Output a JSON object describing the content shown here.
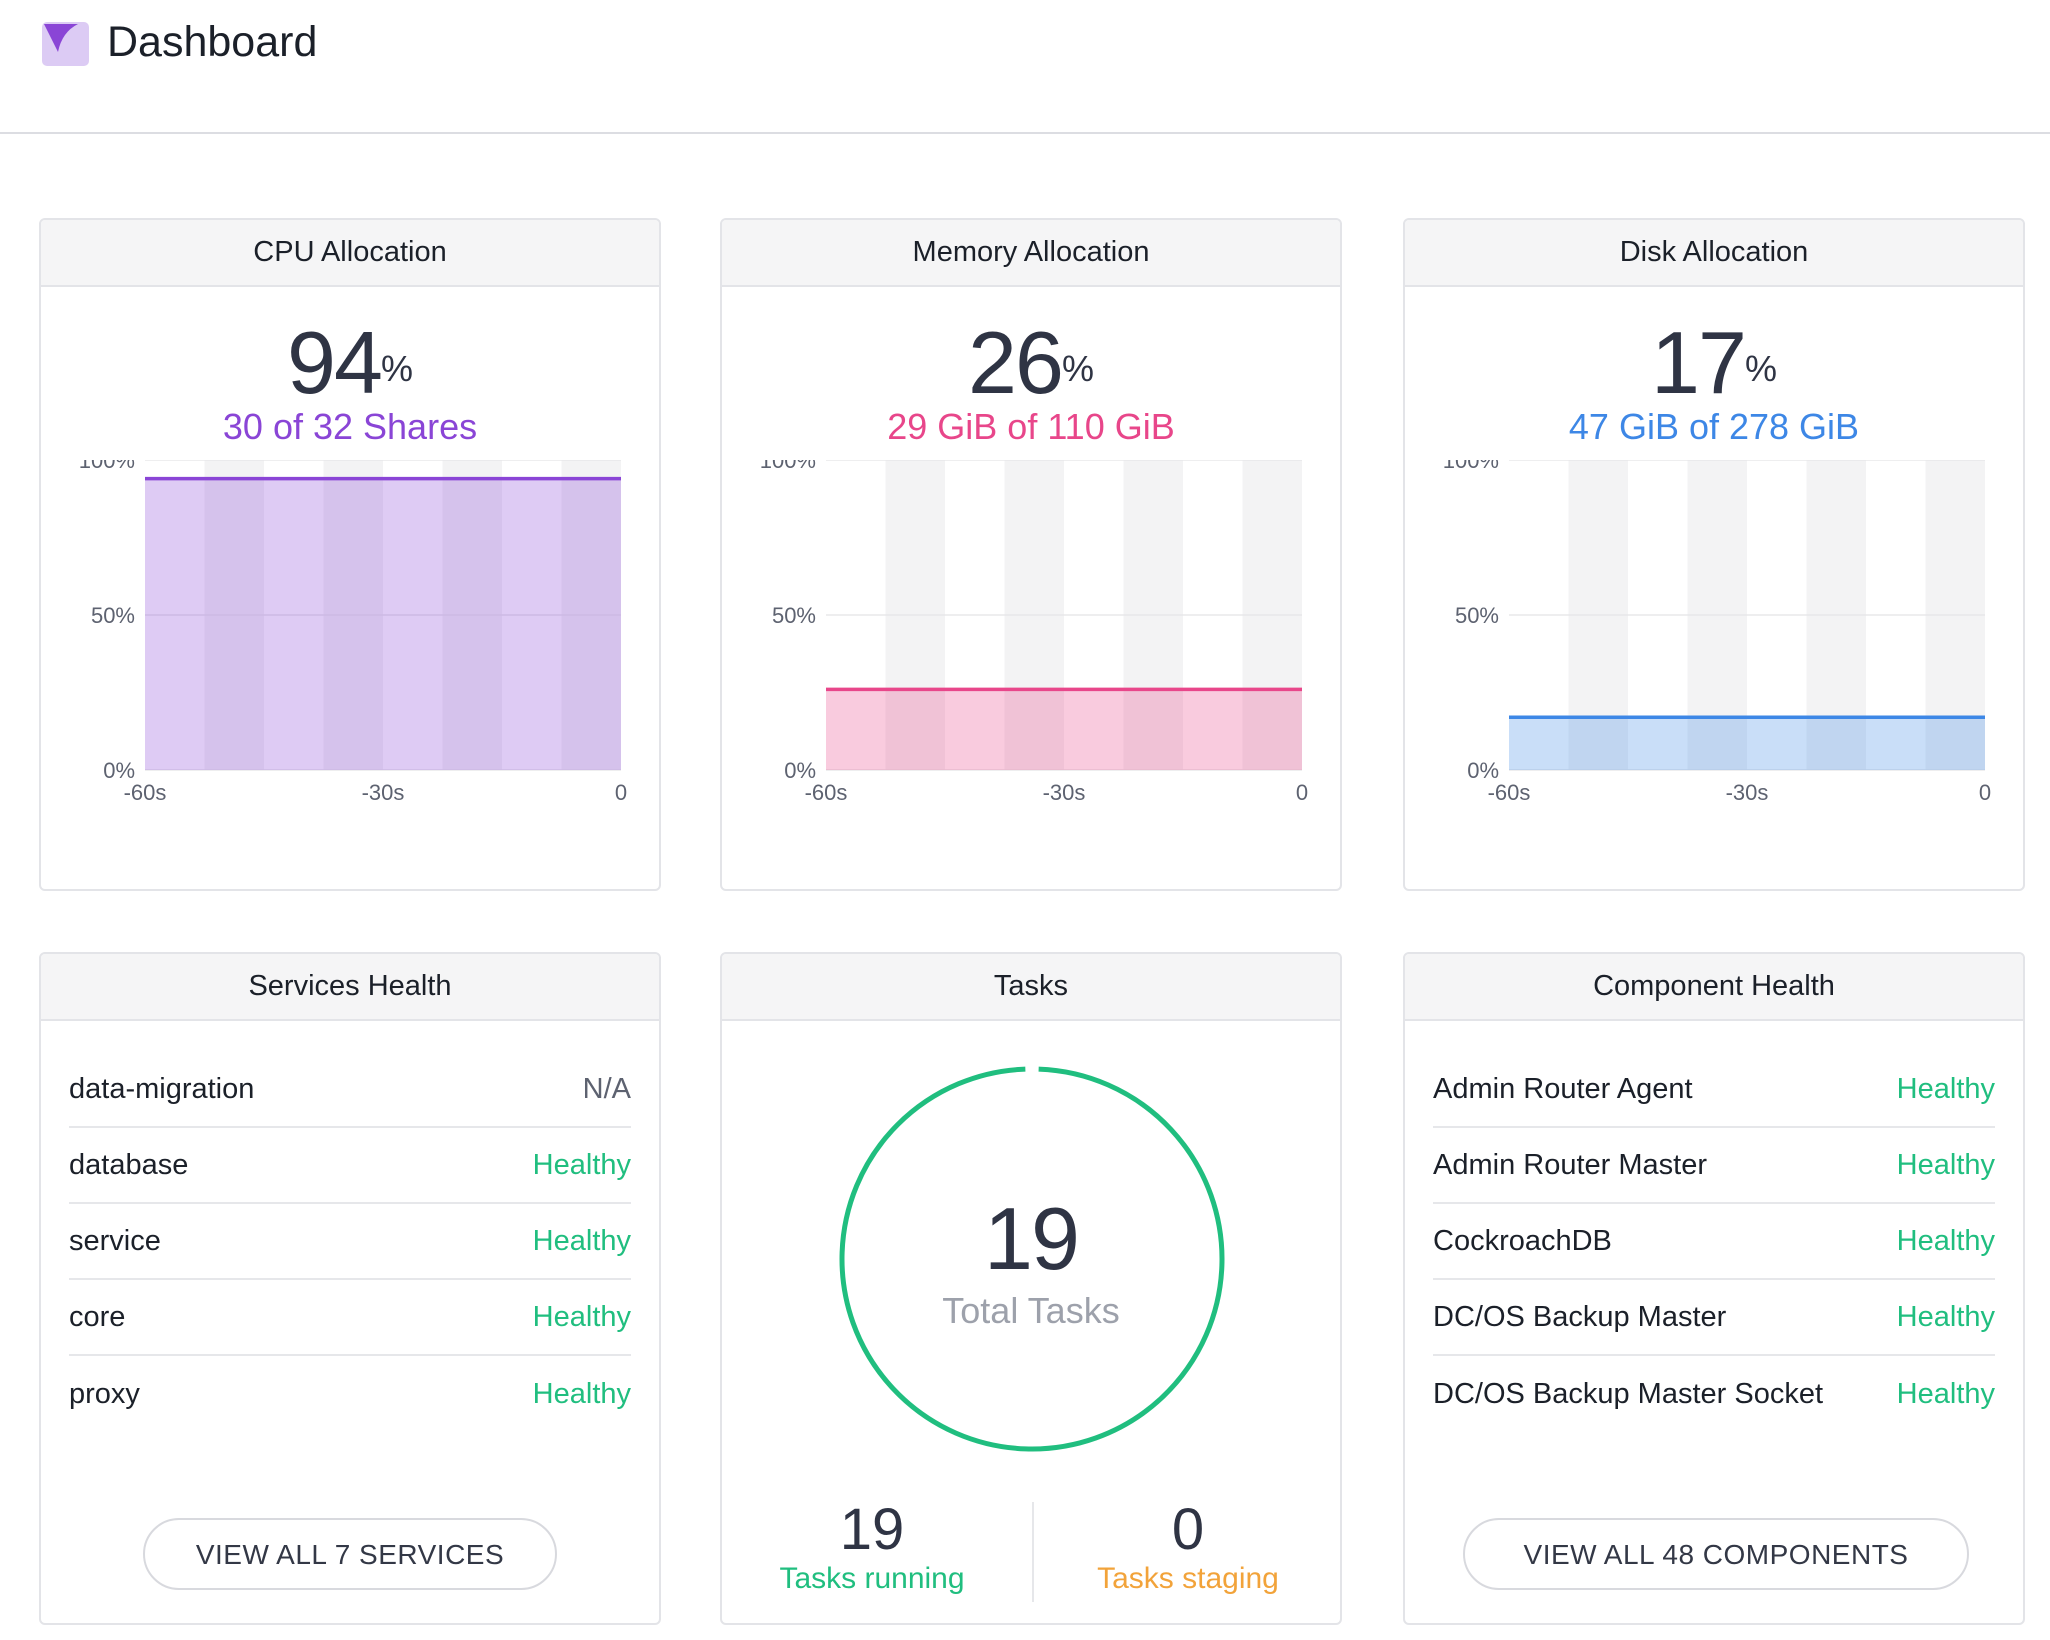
{
  "header": {
    "title": "Dashboard"
  },
  "colors": {
    "cpu": "#8a45d6",
    "memory": "#e8468a",
    "disk": "#3d87e6",
    "healthy": "#20be7f",
    "staging": "#f2a33a"
  },
  "cpu": {
    "title": "CPU Allocation",
    "percent": "94",
    "percent_sign": "%",
    "summary": "30 of 32 Shares",
    "chart_data": {
      "type": "area",
      "x": [
        -60,
        -30,
        0
      ],
      "values": [
        94,
        94,
        94
      ],
      "ylim": [
        0,
        100
      ],
      "yticks": [
        "100%",
        "50%",
        "0%"
      ],
      "xticks": [
        "-60s",
        "-30s",
        "0"
      ]
    }
  },
  "memory": {
    "title": "Memory Allocation",
    "percent": "26",
    "percent_sign": "%",
    "summary": "29 GiB of 110 GiB",
    "chart_data": {
      "type": "area",
      "x": [
        -60,
        -30,
        0
      ],
      "values": [
        26,
        26,
        26
      ],
      "ylim": [
        0,
        100
      ],
      "yticks": [
        "100%",
        "50%",
        "0%"
      ],
      "xticks": [
        "-60s",
        "-30s",
        "0"
      ]
    }
  },
  "disk": {
    "title": "Disk Allocation",
    "percent": "17",
    "percent_sign": "%",
    "summary": "47 GiB of 278 GiB",
    "chart_data": {
      "type": "area",
      "x": [
        -60,
        -30,
        0
      ],
      "values": [
        17,
        17,
        17
      ],
      "ylim": [
        0,
        100
      ],
      "yticks": [
        "100%",
        "50%",
        "0%"
      ],
      "xticks": [
        "-60s",
        "-30s",
        "0"
      ]
    }
  },
  "services": {
    "title": "Services Health",
    "items": [
      {
        "name": "data-migration",
        "status": "N/A"
      },
      {
        "name": "database",
        "status": "Healthy"
      },
      {
        "name": "service",
        "status": "Healthy"
      },
      {
        "name": "core",
        "status": "Healthy"
      },
      {
        "name": "proxy",
        "status": "Healthy"
      }
    ],
    "button_label": "VIEW ALL 7 SERVICES"
  },
  "tasks": {
    "title": "Tasks",
    "total": "19",
    "total_label": "Total Tasks",
    "running": "19",
    "running_label": "Tasks running",
    "staging": "0",
    "staging_label": "Tasks staging"
  },
  "components": {
    "title": "Component Health",
    "items": [
      {
        "name": "Admin Router Agent",
        "status": "Healthy"
      },
      {
        "name": "Admin Router Master",
        "status": "Healthy"
      },
      {
        "name": "CockroachDB",
        "status": "Healthy"
      },
      {
        "name": "DC/OS Backup Master",
        "status": "Healthy"
      },
      {
        "name": "DC/OS Backup Master Socket",
        "status": "Healthy"
      }
    ],
    "button_label": "VIEW ALL 48 COMPONENTS"
  }
}
